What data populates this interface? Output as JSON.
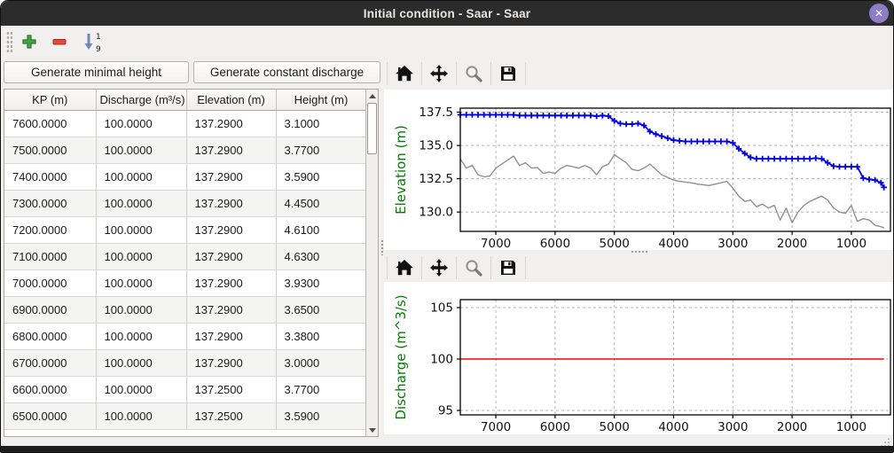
{
  "window": {
    "title": "Initial condition - Saar - Saar",
    "close_glyph": "✕"
  },
  "main_toolbar": {
    "sort_top": "1",
    "sort_bottom": "9"
  },
  "left_panel": {
    "buttons": [
      {
        "label": "Generate minimal height"
      },
      {
        "label": "Generate constant discharge"
      }
    ],
    "table": {
      "columns": [
        "KP (m)",
        "Discharge (m³/s)",
        "Elevation (m)",
        "Height (m)"
      ],
      "rows": [
        [
          "7600.0000",
          "100.0000",
          "137.2900",
          "3.1000"
        ],
        [
          "7500.0000",
          "100.0000",
          "137.2900",
          "3.7700"
        ],
        [
          "7400.0000",
          "100.0000",
          "137.2900",
          "3.5900"
        ],
        [
          "7300.0000",
          "100.0000",
          "137.2900",
          "4.4500"
        ],
        [
          "7200.0000",
          "100.0000",
          "137.2900",
          "4.6100"
        ],
        [
          "7100.0000",
          "100.0000",
          "137.2900",
          "4.6300"
        ],
        [
          "7000.0000",
          "100.0000",
          "137.2900",
          "3.9300"
        ],
        [
          "6900.0000",
          "100.0000",
          "137.2900",
          "3.6500"
        ],
        [
          "6800.0000",
          "100.0000",
          "137.2900",
          "3.3800"
        ],
        [
          "6700.0000",
          "100.0000",
          "137.2900",
          "3.0000"
        ],
        [
          "6600.0000",
          "100.0000",
          "137.2500",
          "3.7700"
        ],
        [
          "6500.0000",
          "100.0000",
          "137.2500",
          "3.5900"
        ]
      ]
    }
  },
  "plot_toolbar": {
    "icons": [
      "home",
      "pan",
      "zoom",
      "save"
    ]
  },
  "theme": {
    "titlebar": "#2c2c2c",
    "close_purple": "#8d7dc6",
    "add_green": "#44a544",
    "remove_red": "#e8473b",
    "sort_blue": "#6f88bb",
    "axis_label_green": "#008000",
    "line_blue": "#0000ee",
    "line_gray": "#909090",
    "line_red": "#ff0000"
  },
  "chart_data": [
    {
      "type": "line",
      "ylabel": "Elevation (m)",
      "xlim": [
        7600,
        340
      ],
      "ylim": [
        128.55,
        137.8
      ],
      "xticks": [
        7000,
        6000,
        5000,
        4000,
        3000,
        2000,
        1000
      ],
      "xtick_labels": [
        "7000",
        "6000",
        "5000",
        "4000",
        "3000",
        "2000",
        "1000"
      ],
      "yticks": [
        130.0,
        132.5,
        135.0,
        137.5
      ],
      "ytick_labels": [
        "130.0",
        "132.5",
        "135.0",
        "137.5"
      ],
      "grid": true,
      "x": [
        7600,
        7500,
        7400,
        7300,
        7200,
        7100,
        7000,
        6900,
        6800,
        6700,
        6600,
        6500,
        6400,
        6300,
        6200,
        6100,
        6000,
        5900,
        5800,
        5700,
        5600,
        5500,
        5400,
        5300,
        5200,
        5100,
        5000,
        4900,
        4800,
        4700,
        4600,
        4500,
        4400,
        4300,
        4200,
        4100,
        4000,
        3900,
        3800,
        3700,
        3600,
        3500,
        3400,
        3300,
        3200,
        3100,
        3000,
        2900,
        2800,
        2700,
        2600,
        2500,
        2400,
        2300,
        2200,
        2100,
        2000,
        1900,
        1800,
        1700,
        1600,
        1500,
        1400,
        1300,
        1200,
        1100,
        1000,
        900,
        800,
        700,
        600,
        500,
        450
      ],
      "series": [
        {
          "name": "water surface elevation",
          "color": "#0000ee",
          "marker": "+",
          "width": 1.8,
          "values": [
            137.3,
            137.3,
            137.3,
            137.3,
            137.3,
            137.3,
            137.3,
            137.3,
            137.3,
            137.3,
            137.25,
            137.25,
            137.25,
            137.25,
            137.25,
            137.25,
            137.25,
            137.25,
            137.25,
            137.25,
            137.25,
            137.25,
            137.25,
            137.2,
            137.25,
            137.2,
            136.85,
            136.65,
            136.6,
            136.6,
            136.65,
            136.5,
            136.05,
            135.85,
            135.7,
            135.55,
            135.4,
            135.35,
            135.3,
            135.3,
            135.3,
            135.3,
            135.3,
            135.3,
            135.3,
            135.3,
            135.2,
            134.75,
            134.4,
            134.1,
            134.0,
            134.0,
            134.0,
            134.0,
            134.0,
            134.0,
            134.0,
            134.0,
            134.0,
            134.0,
            134.05,
            134.0,
            133.7,
            133.45,
            133.4,
            133.4,
            133.4,
            133.4,
            132.55,
            132.45,
            132.4,
            132.2,
            131.85
          ]
        },
        {
          "name": "river bottom elevation",
          "color": "#909090",
          "marker": null,
          "width": 1.4,
          "values": [
            134.0,
            133.3,
            133.5,
            132.8,
            132.65,
            132.7,
            133.3,
            133.6,
            133.9,
            134.2,
            133.5,
            133.7,
            133.3,
            133.35,
            132.9,
            133.0,
            132.9,
            133.3,
            133.5,
            133.4,
            133.3,
            133.5,
            133.3,
            132.8,
            133.4,
            133.6,
            134.3,
            134.0,
            133.7,
            133.2,
            133.1,
            133.3,
            133.6,
            133.2,
            132.8,
            132.6,
            132.4,
            132.3,
            132.25,
            132.2,
            132.1,
            132.05,
            132.0,
            132.1,
            132.2,
            132.3,
            131.8,
            131.2,
            130.8,
            130.9,
            130.4,
            130.6,
            130.3,
            130.5,
            129.4,
            130.3,
            129.2,
            130.0,
            130.5,
            130.8,
            131.0,
            131.2,
            130.9,
            130.3,
            130.0,
            129.9,
            130.5,
            129.3,
            129.5,
            129.4,
            129.0,
            128.9,
            128.8
          ]
        }
      ]
    },
    {
      "type": "line",
      "ylabel": "Discharge (m^3/s)",
      "xlim": [
        7600,
        340
      ],
      "ylim": [
        94.57,
        105.78
      ],
      "xticks": [
        7000,
        6000,
        5000,
        4000,
        3000,
        2000,
        1000
      ],
      "xtick_labels": [
        "7000",
        "6000",
        "5000",
        "4000",
        "3000",
        "2000",
        "1000"
      ],
      "yticks": [
        95,
        100,
        105
      ],
      "ytick_labels": [
        "95",
        "100",
        "105"
      ],
      "grid": true,
      "x": [
        7600,
        450
      ],
      "series": [
        {
          "name": "discharge",
          "color": "#ff0000",
          "marker": null,
          "width": 1.6,
          "values": [
            100,
            100
          ]
        }
      ]
    }
  ]
}
